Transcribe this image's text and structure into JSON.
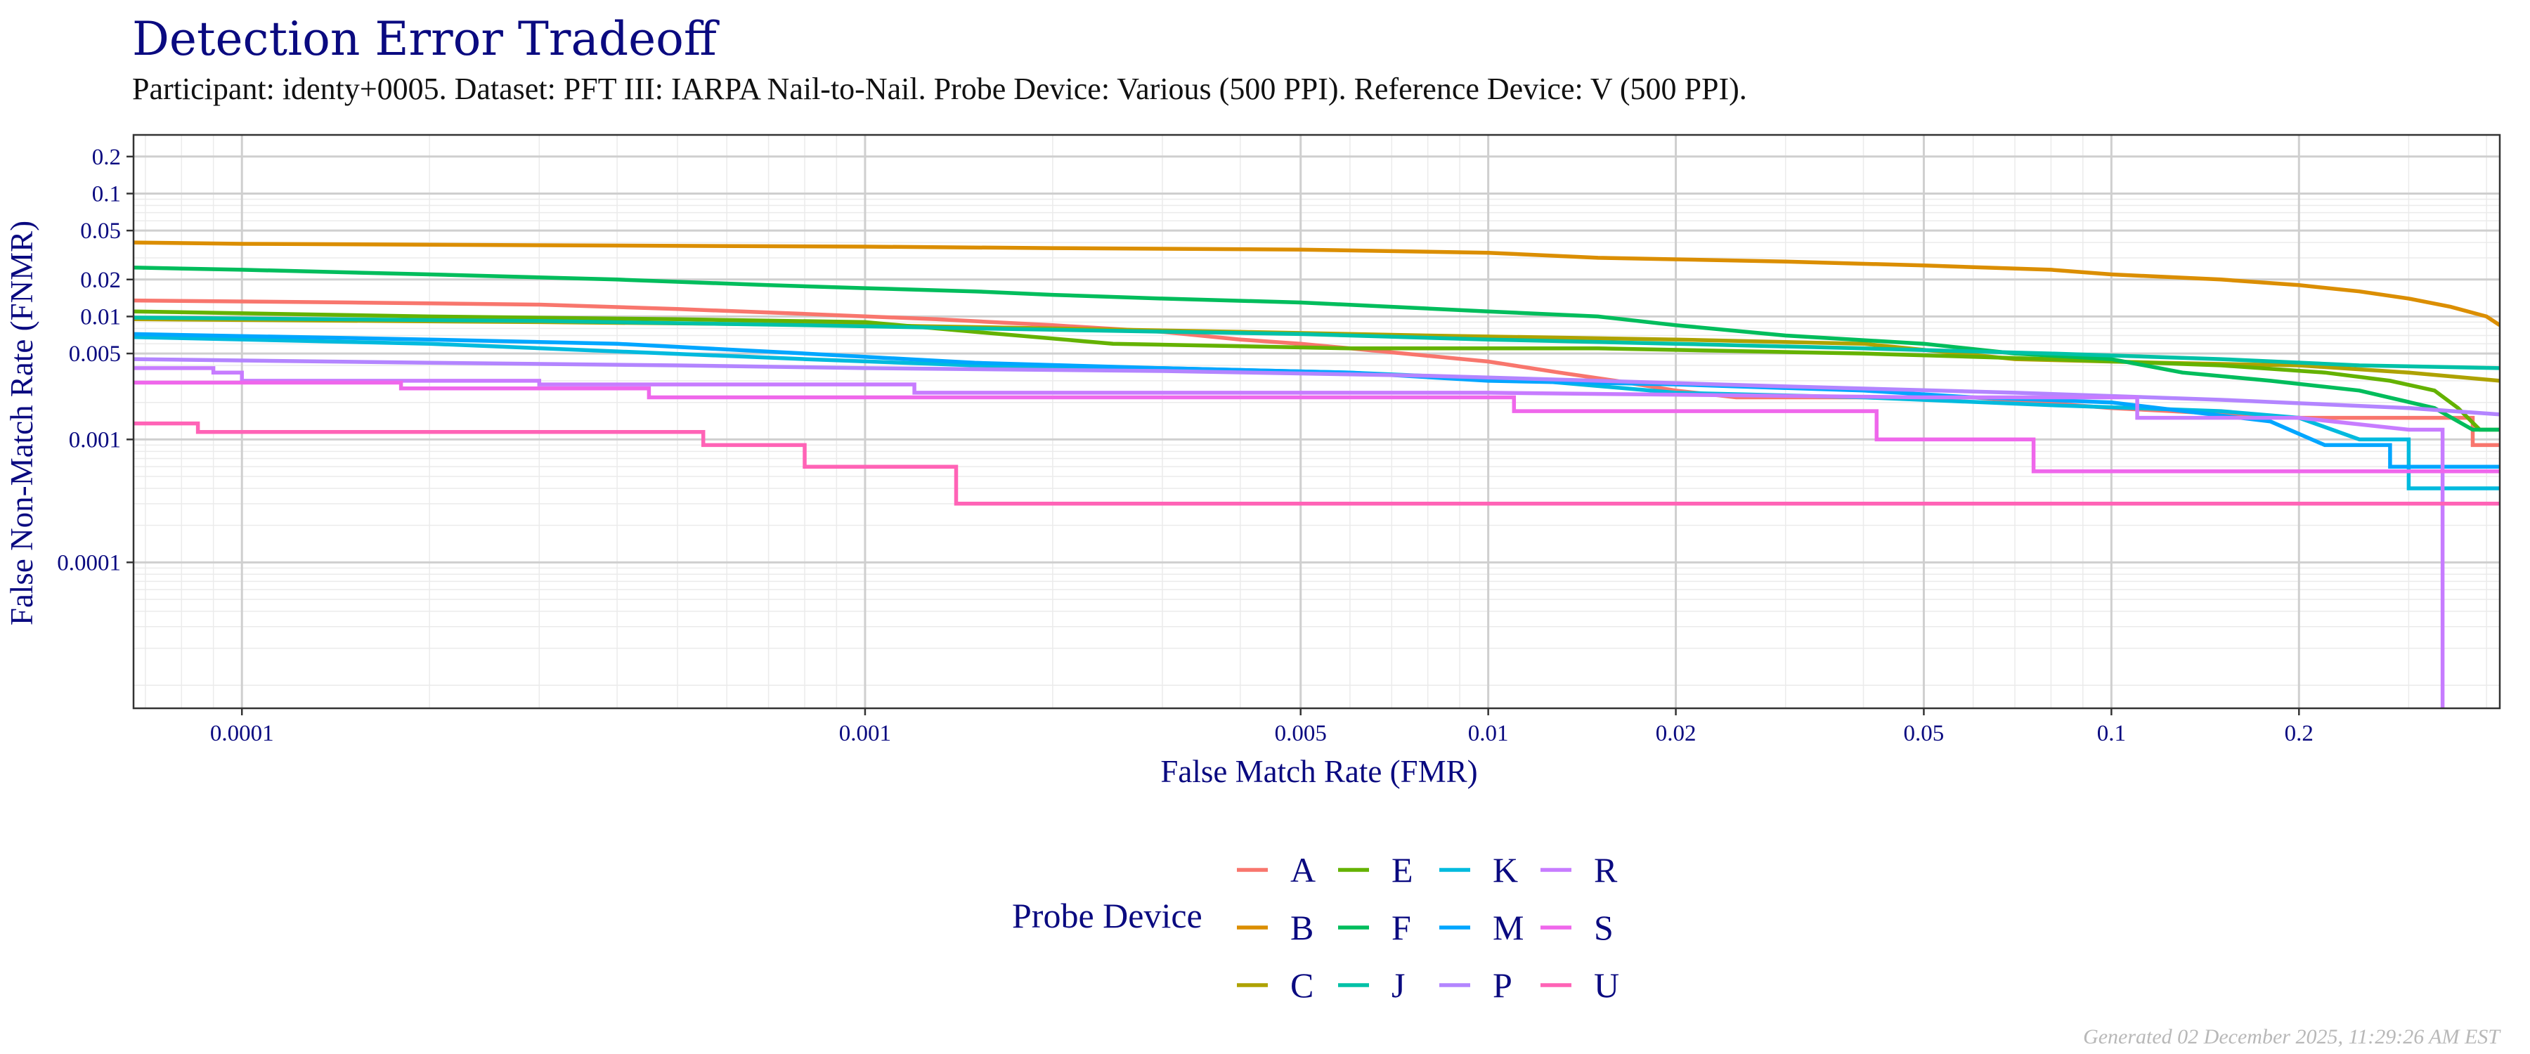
{
  "chart_data": {
    "type": "line",
    "title": "Detection Error Tradeoff",
    "subtitle": "Participant: identy+0005. Dataset: PFT III: IARPA Nail-to-Nail. Probe Device: Various (500 PPI). Reference Device: V (500 PPI).",
    "xlabel": "False Match Rate (FMR)",
    "ylabel": "False Non-Match Rate (FNMR)",
    "x_scale": "log",
    "y_scale": "log",
    "xlim": [
      6.7e-05,
      0.42
    ],
    "ylim": [
      6.5e-06,
      0.3
    ],
    "x_ticks": [
      {
        "value": 0.0001,
        "label": "0.0001"
      },
      {
        "value": 0.001,
        "label": "0.001"
      },
      {
        "value": 0.005,
        "label": "0.005"
      },
      {
        "value": 0.01,
        "label": "0.01"
      },
      {
        "value": 0.02,
        "label": "0.02"
      },
      {
        "value": 0.05,
        "label": "0.05"
      },
      {
        "value": 0.1,
        "label": "0.1"
      },
      {
        "value": 0.2,
        "label": "0.2"
      }
    ],
    "y_ticks": [
      {
        "value": 0.0001,
        "label": "0.0001"
      },
      {
        "value": 0.001,
        "label": "0.001"
      },
      {
        "value": 0.005,
        "label": "0.005"
      },
      {
        "value": 0.01,
        "label": "0.01"
      },
      {
        "value": 0.02,
        "label": "0.02"
      },
      {
        "value": 0.05,
        "label": "0.05"
      },
      {
        "value": 0.1,
        "label": "0.1"
      },
      {
        "value": 0.2,
        "label": "0.2"
      }
    ],
    "grid": true,
    "legend": {
      "title": "Probe Device",
      "position": "bottom",
      "columns": 4
    },
    "series": [
      {
        "name": "A",
        "color": "#F8766D",
        "points": [
          [
            6.7e-05,
            0.0135
          ],
          [
            0.00015,
            0.013
          ],
          [
            0.0003,
            0.0125
          ],
          [
            0.0005,
            0.0115
          ],
          [
            0.0008,
            0.0105
          ],
          [
            0.0013,
            0.0095
          ],
          [
            0.002,
            0.0085
          ],
          [
            0.003,
            0.0075
          ],
          [
            0.004,
            0.0065
          ],
          [
            0.005,
            0.006
          ],
          [
            0.006,
            0.0055
          ],
          [
            0.01,
            0.0043
          ],
          [
            0.013,
            0.0035
          ],
          [
            0.016,
            0.003
          ],
          [
            0.02,
            0.0025
          ],
          [
            0.025,
            0.0022
          ],
          [
            0.06,
            0.0022
          ],
          [
            0.1,
            0.0018
          ],
          [
            0.2,
            0.0015
          ],
          [
            0.38,
            0.0015
          ],
          [
            0.38,
            0.0009
          ],
          [
            0.42,
            0.0009
          ]
        ]
      },
      {
        "name": "B",
        "color": "#DB8E00",
        "points": [
          [
            6.7e-05,
            0.04
          ],
          [
            0.0001,
            0.039
          ],
          [
            0.0003,
            0.038
          ],
          [
            0.001,
            0.037
          ],
          [
            0.002,
            0.036
          ],
          [
            0.005,
            0.035
          ],
          [
            0.01,
            0.033
          ],
          [
            0.015,
            0.03
          ],
          [
            0.03,
            0.028
          ],
          [
            0.05,
            0.026
          ],
          [
            0.08,
            0.024
          ],
          [
            0.1,
            0.022
          ],
          [
            0.15,
            0.02
          ],
          [
            0.2,
            0.018
          ],
          [
            0.25,
            0.016
          ],
          [
            0.3,
            0.014
          ],
          [
            0.35,
            0.012
          ],
          [
            0.4,
            0.01
          ],
          [
            0.42,
            0.0085
          ]
        ]
      },
      {
        "name": "C",
        "color": "#AEA200",
        "points": [
          [
            6.7e-05,
            0.0095
          ],
          [
            0.0003,
            0.009
          ],
          [
            0.001,
            0.0085
          ],
          [
            0.002,
            0.008
          ],
          [
            0.004,
            0.0075
          ],
          [
            0.008,
            0.007
          ],
          [
            0.02,
            0.0065
          ],
          [
            0.04,
            0.006
          ],
          [
            0.07,
            0.0045
          ],
          [
            0.12,
            0.0042
          ],
          [
            0.2,
            0.004
          ],
          [
            0.3,
            0.0035
          ],
          [
            0.42,
            0.003
          ]
        ]
      },
      {
        "name": "E",
        "color": "#64B200",
        "points": [
          [
            6.7e-05,
            0.011
          ],
          [
            0.0002,
            0.01
          ],
          [
            0.0005,
            0.0095
          ],
          [
            0.001,
            0.009
          ],
          [
            0.0015,
            0.0075
          ],
          [
            0.0025,
            0.006
          ],
          [
            0.006,
            0.0055
          ],
          [
            0.015,
            0.0055
          ],
          [
            0.04,
            0.005
          ],
          [
            0.08,
            0.0045
          ],
          [
            0.15,
            0.004
          ],
          [
            0.22,
            0.0035
          ],
          [
            0.28,
            0.003
          ],
          [
            0.33,
            0.0025
          ],
          [
            0.36,
            0.0018
          ],
          [
            0.39,
            0.0012
          ],
          [
            0.42,
            0.0012
          ]
        ]
      },
      {
        "name": "F",
        "color": "#00BD5C",
        "points": [
          [
            6.7e-05,
            0.025
          ],
          [
            0.0001,
            0.024
          ],
          [
            0.0002,
            0.022
          ],
          [
            0.0004,
            0.02
          ],
          [
            0.0007,
            0.018
          ],
          [
            0.001,
            0.017
          ],
          [
            0.0015,
            0.016
          ],
          [
            0.002,
            0.015
          ],
          [
            0.003,
            0.014
          ],
          [
            0.005,
            0.013
          ],
          [
            0.007,
            0.012
          ],
          [
            0.01,
            0.011
          ],
          [
            0.015,
            0.01
          ],
          [
            0.02,
            0.0085
          ],
          [
            0.03,
            0.007
          ],
          [
            0.05,
            0.006
          ],
          [
            0.07,
            0.005
          ],
          [
            0.1,
            0.0045
          ],
          [
            0.13,
            0.0035
          ],
          [
            0.18,
            0.003
          ],
          [
            0.25,
            0.0025
          ],
          [
            0.33,
            0.0018
          ],
          [
            0.38,
            0.0012
          ],
          [
            0.42,
            0.0012
          ]
        ]
      },
      {
        "name": "J",
        "color": "#00C1A7",
        "points": [
          [
            6.7e-05,
            0.0098
          ],
          [
            0.0003,
            0.0092
          ],
          [
            0.0008,
            0.0085
          ],
          [
            0.002,
            0.0078
          ],
          [
            0.005,
            0.0072
          ],
          [
            0.01,
            0.0065
          ],
          [
            0.02,
            0.006
          ],
          [
            0.04,
            0.0055
          ],
          [
            0.08,
            0.005
          ],
          [
            0.15,
            0.0045
          ],
          [
            0.25,
            0.004
          ],
          [
            0.42,
            0.0038
          ]
        ]
      },
      {
        "name": "K",
        "color": "#00BADE",
        "points": [
          [
            6.7e-05,
            0.0068
          ],
          [
            0.0002,
            0.006
          ],
          [
            0.0004,
            0.0052
          ],
          [
            0.0008,
            0.0045
          ],
          [
            0.0015,
            0.004
          ],
          [
            0.003,
            0.0038
          ],
          [
            0.006,
            0.0035
          ],
          [
            0.012,
            0.003
          ],
          [
            0.02,
            0.0024
          ],
          [
            0.04,
            0.0022
          ],
          [
            0.08,
            0.0019
          ],
          [
            0.15,
            0.0017
          ],
          [
            0.2,
            0.0015
          ],
          [
            0.25,
            0.001
          ],
          [
            0.3,
            0.001
          ],
          [
            0.3,
            0.0004
          ],
          [
            0.42,
            0.0004
          ]
        ]
      },
      {
        "name": "M",
        "color": "#00A6FF",
        "points": [
          [
            6.7e-05,
            0.0072
          ],
          [
            0.0002,
            0.0065
          ],
          [
            0.0004,
            0.006
          ],
          [
            0.0008,
            0.005
          ],
          [
            0.0015,
            0.0042
          ],
          [
            0.003,
            0.0038
          ],
          [
            0.006,
            0.0035
          ],
          [
            0.01,
            0.003
          ],
          [
            0.02,
            0.0028
          ],
          [
            0.04,
            0.0025
          ],
          [
            0.06,
            0.0022
          ],
          [
            0.1,
            0.002
          ],
          [
            0.18,
            0.0014
          ],
          [
            0.22,
            0.0009
          ],
          [
            0.28,
            0.0009
          ],
          [
            0.28,
            0.0006
          ],
          [
            0.42,
            0.0006
          ]
        ]
      },
      {
        "name": "P",
        "color": "#B385FF",
        "points": [
          [
            6.7e-05,
            0.0045
          ],
          [
            0.0002,
            0.0042
          ],
          [
            0.0005,
            0.004
          ],
          [
            0.001,
            0.0038
          ],
          [
            0.003,
            0.0036
          ],
          [
            0.008,
            0.0033
          ],
          [
            0.015,
            0.003
          ],
          [
            0.03,
            0.0027
          ],
          [
            0.07,
            0.0024
          ],
          [
            0.15,
            0.0021
          ],
          [
            0.3,
            0.0018
          ],
          [
            0.42,
            0.0016
          ]
        ]
      },
      {
        "name": "R",
        "color": "#C77CFF",
        "points": [
          [
            6.7e-05,
            0.0038
          ],
          [
            9e-05,
            0.0038
          ],
          [
            9e-05,
            0.0035
          ],
          [
            0.0001,
            0.0035
          ],
          [
            0.0001,
            0.003
          ],
          [
            0.0003,
            0.003
          ],
          [
            0.0003,
            0.0028
          ],
          [
            0.0012,
            0.0028
          ],
          [
            0.0012,
            0.0024
          ],
          [
            0.01,
            0.0024
          ],
          [
            0.05,
            0.0022
          ],
          [
            0.11,
            0.0022
          ],
          [
            0.11,
            0.0015
          ],
          [
            0.2,
            0.0015
          ],
          [
            0.3,
            0.0012
          ],
          [
            0.34,
            0.0012
          ],
          [
            0.34,
            6e-06
          ]
        ]
      },
      {
        "name": "S",
        "color": "#EF67EB",
        "points": [
          [
            6.7e-05,
            0.0029
          ],
          [
            0.00018,
            0.0029
          ],
          [
            0.00018,
            0.0026
          ],
          [
            0.00045,
            0.0026
          ],
          [
            0.00045,
            0.0022
          ],
          [
            0.011,
            0.0022
          ],
          [
            0.011,
            0.0017
          ],
          [
            0.042,
            0.0017
          ],
          [
            0.042,
            0.001
          ],
          [
            0.075,
            0.001
          ],
          [
            0.075,
            0.00055
          ],
          [
            0.42,
            0.00055
          ]
        ]
      },
      {
        "name": "U",
        "color": "#FF63B6",
        "points": [
          [
            6.7e-05,
            0.00135
          ],
          [
            8.5e-05,
            0.00135
          ],
          [
            8.5e-05,
            0.00115
          ],
          [
            0.00055,
            0.00115
          ],
          [
            0.00055,
            0.0009
          ],
          [
            0.0008,
            0.0009
          ],
          [
            0.0008,
            0.0006
          ],
          [
            0.0014,
            0.0006
          ],
          [
            0.0014,
            0.0003
          ],
          [
            0.42,
            0.0003
          ]
        ]
      }
    ],
    "legend_order": [
      "A",
      "B",
      "C",
      "E",
      "F",
      "J",
      "K",
      "M",
      "P",
      "R",
      "S",
      "U"
    ]
  },
  "footer": {
    "generated": "Generated 02 December 2025, 11:29:26 AM EST"
  }
}
